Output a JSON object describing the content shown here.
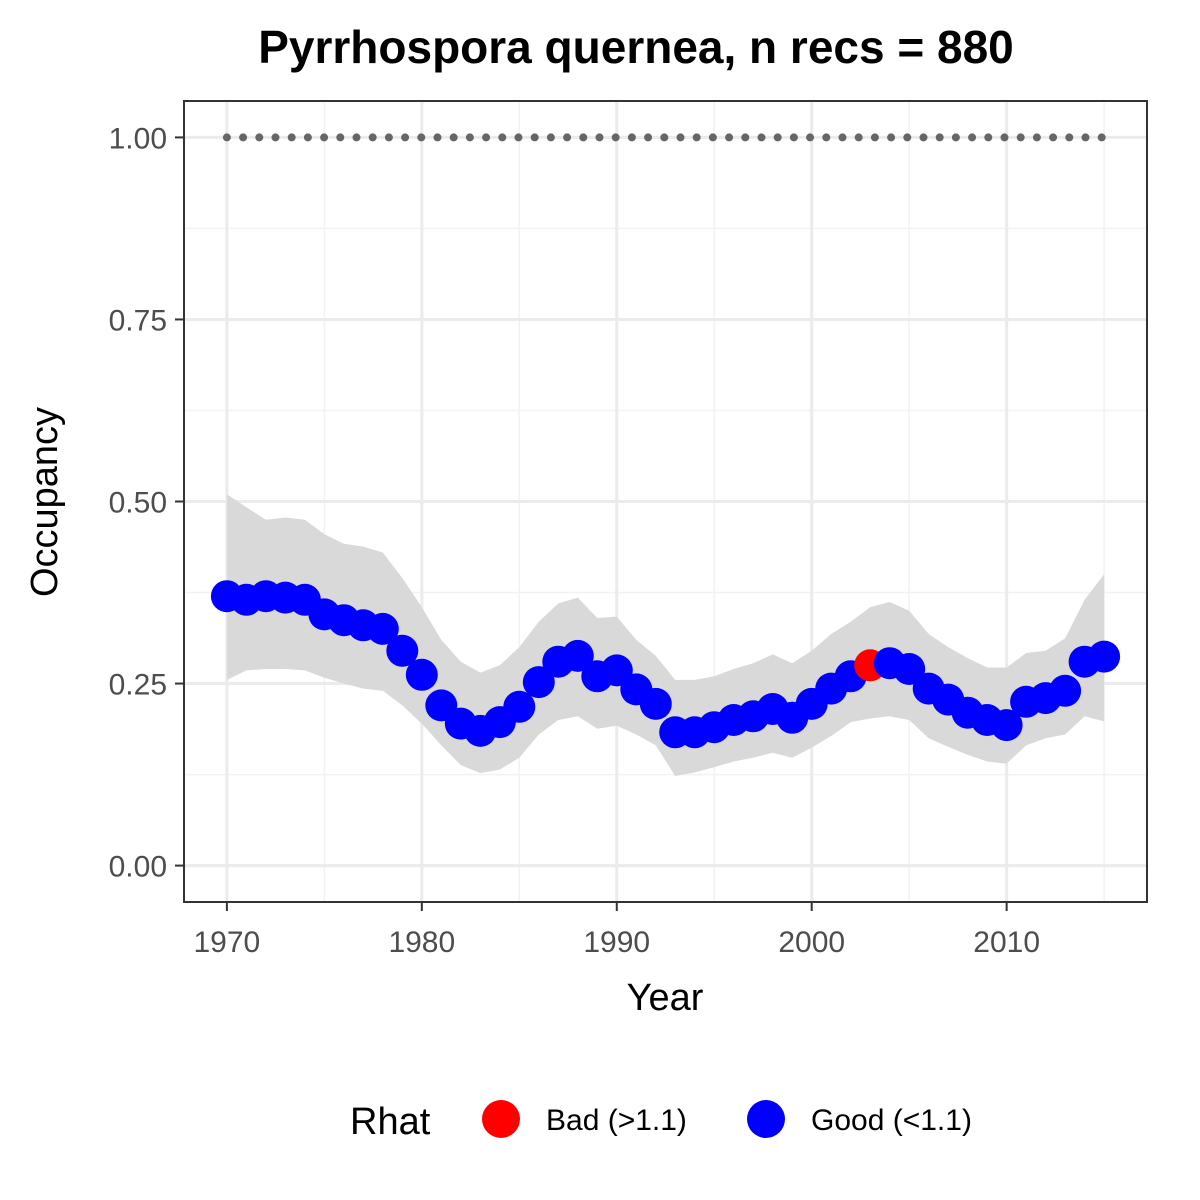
{
  "chart_data": {
    "type": "scatter",
    "title": "Pyrrhospora quernea, n recs = 880",
    "xlabel": "Year",
    "ylabel": "Occupancy",
    "xlim": [
      1967.8,
      2017.2
    ],
    "ylim": [
      -0.05,
      1.05
    ],
    "x_ticks": [
      1970,
      1980,
      1990,
      2000,
      2010
    ],
    "x_tick_labels": [
      "1970",
      "1980",
      "1990",
      "2000",
      "2010"
    ],
    "y_ticks": [
      0.0,
      0.25,
      0.5,
      0.75,
      1.0
    ],
    "y_tick_labels": [
      "0.00",
      "0.25",
      "0.50",
      "0.75",
      "1.00"
    ],
    "grid": true,
    "legend_position": "bottom",
    "legend": {
      "title": "Rhat",
      "entries": [
        {
          "label": "Bad (>1.1)",
          "color": "#ff0000"
        },
        {
          "label": "Good (<1.1)",
          "color": "#0000ff"
        }
      ]
    },
    "colors": {
      "bad": "#ff0000",
      "good": "#0000ff",
      "ribbon": "#d9d9d9",
      "reference": "#666666"
    },
    "reference_line": {
      "y": 1.0,
      "style": "dotted",
      "color": "#666666"
    },
    "series": [
      {
        "name": "Occupancy",
        "x": [
          1970,
          1971,
          1972,
          1973,
          1974,
          1975,
          1976,
          1977,
          1978,
          1979,
          1980,
          1981,
          1982,
          1983,
          1984,
          1985,
          1986,
          1987,
          1988,
          1989,
          1990,
          1991,
          1992,
          1993,
          1994,
          1995,
          1996,
          1997,
          1998,
          1999,
          2000,
          2001,
          2002,
          2003,
          2004,
          2005,
          2006,
          2007,
          2008,
          2009,
          2010,
          2011,
          2012,
          2013,
          2014,
          2015
        ],
        "y": [
          0.37,
          0.365,
          0.37,
          0.368,
          0.365,
          0.345,
          0.337,
          0.33,
          0.325,
          0.295,
          0.262,
          0.22,
          0.195,
          0.185,
          0.197,
          0.218,
          0.252,
          0.28,
          0.288,
          0.26,
          0.268,
          0.242,
          0.222,
          0.183,
          0.183,
          0.19,
          0.2,
          0.205,
          0.215,
          0.203,
          0.222,
          0.243,
          0.26,
          0.275,
          0.278,
          0.27,
          0.243,
          0.228,
          0.21,
          0.2,
          0.193,
          0.225,
          0.23,
          0.24,
          0.28,
          0.287
        ],
        "lower": [
          0.255,
          0.268,
          0.27,
          0.27,
          0.268,
          0.258,
          0.25,
          0.243,
          0.24,
          0.22,
          0.195,
          0.165,
          0.138,
          0.127,
          0.132,
          0.148,
          0.18,
          0.2,
          0.205,
          0.188,
          0.192,
          0.18,
          0.165,
          0.123,
          0.128,
          0.135,
          0.143,
          0.148,
          0.155,
          0.148,
          0.162,
          0.178,
          0.197,
          0.202,
          0.205,
          0.2,
          0.175,
          0.163,
          0.152,
          0.143,
          0.14,
          0.165,
          0.175,
          0.18,
          0.205,
          0.198
        ],
        "upper": [
          0.51,
          0.492,
          0.475,
          0.478,
          0.475,
          0.455,
          0.442,
          0.438,
          0.43,
          0.395,
          0.355,
          0.31,
          0.28,
          0.265,
          0.275,
          0.3,
          0.335,
          0.36,
          0.368,
          0.34,
          0.342,
          0.31,
          0.288,
          0.255,
          0.255,
          0.26,
          0.27,
          0.278,
          0.29,
          0.278,
          0.295,
          0.318,
          0.335,
          0.355,
          0.362,
          0.35,
          0.318,
          0.3,
          0.285,
          0.272,
          0.272,
          0.292,
          0.295,
          0.312,
          0.365,
          0.4
        ],
        "rhat": [
          "good",
          "good",
          "good",
          "good",
          "good",
          "good",
          "good",
          "good",
          "good",
          "good",
          "good",
          "good",
          "good",
          "good",
          "good",
          "good",
          "good",
          "good",
          "good",
          "good",
          "good",
          "good",
          "good",
          "good",
          "good",
          "good",
          "good",
          "good",
          "good",
          "good",
          "good",
          "good",
          "good",
          "bad",
          "good",
          "good",
          "good",
          "good",
          "good",
          "good",
          "good",
          "good",
          "good",
          "good",
          "good",
          "good"
        ]
      }
    ]
  }
}
